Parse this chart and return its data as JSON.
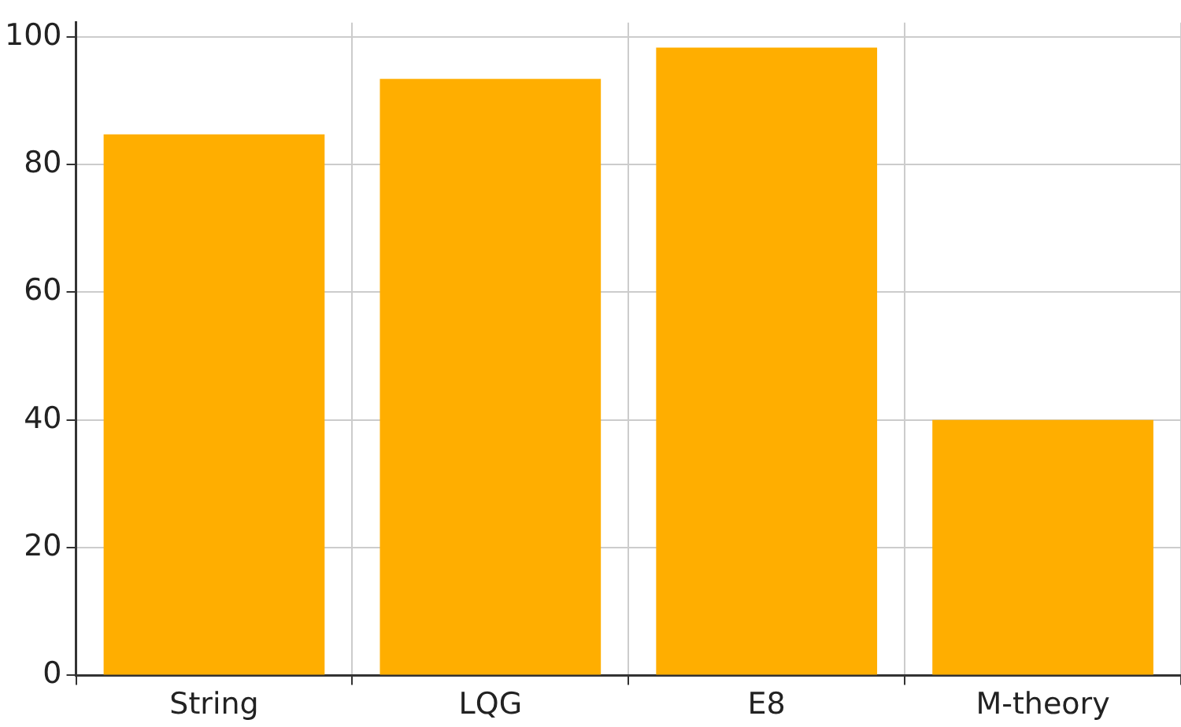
{
  "chart_data": {
    "type": "bar",
    "categories": [
      "String",
      "LQG",
      "E8",
      "M-theory"
    ],
    "values": [
      84.7,
      93.4,
      98.3,
      40
    ],
    "color": "#ffae00",
    "ylim": [
      0,
      102.2
    ],
    "yticks": [
      0,
      20,
      40,
      60,
      80,
      100
    ],
    "grid": true
  }
}
